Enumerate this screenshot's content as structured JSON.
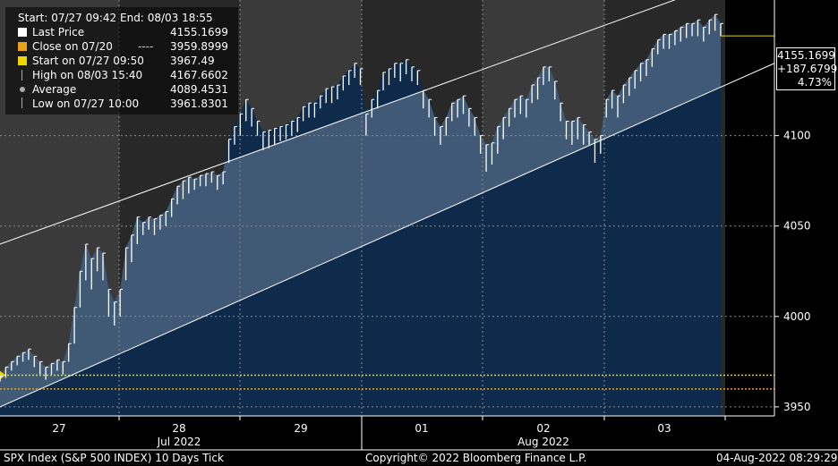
{
  "legend": {
    "header_start_label": "Start:",
    "header_start": "07/27 09:42",
    "header_end_label": "End:",
    "header_end": "08/03 18:55",
    "rows": [
      {
        "label": "Last Price",
        "value": "4155.1699",
        "color": "#ffffff",
        "marker": "square"
      },
      {
        "label": "Close on 07/20",
        "value": "3959.8999",
        "color": "#e8a21a",
        "marker": "square",
        "dash": "----"
      },
      {
        "label": "Start on 07/27 09:50",
        "value": "3967.49",
        "color": "#ecd800",
        "marker": "square"
      },
      {
        "label": "High on 08/03 15:40",
        "value": "4167.6602",
        "color": "#aaaaaa",
        "marker": "high"
      },
      {
        "label": "Average",
        "value": "4089.4531",
        "color": "#aaaaaa",
        "marker": "dot"
      },
      {
        "label": "Low on 07/27 10:00",
        "value": "3961.8301",
        "color": "#aaaaaa",
        "marker": "low"
      }
    ]
  },
  "price_box": {
    "price": "4155.1699",
    "change": "+187.6799",
    "pct": "4.73%"
  },
  "footer": {
    "left": "SPX Index (S&P 500 INDEX) 10 Days  Tick",
    "center": "Copyright© 2022 Bloomberg Finance L.P.",
    "right": "04-Aug-2022 08:29:29"
  },
  "chart_data": {
    "type": "line",
    "title": "SPX Index (S&P 500 INDEX) 10 Days  Tick",
    "xlabel": "",
    "ylabel": "",
    "ylim": [
      3945,
      4175
    ],
    "y_ticks": [
      3950,
      4000,
      4050,
      4100
    ],
    "x_day_labels": [
      "27",
      "28",
      "29",
      "01",
      "02",
      "03"
    ],
    "x_month_labels": [
      "Jul 2022",
      "Aug 2022"
    ],
    "grid": true,
    "reference_lines": [
      {
        "name": "Start on 07/27 09:50",
        "value": 3967.49,
        "color": "#ecd800"
      },
      {
        "name": "Close on 07/20",
        "value": 3959.8999,
        "color": "#e8a21a"
      }
    ],
    "channel": {
      "upper_start": 4040,
      "upper_end": 4195,
      "lower_start": 3950,
      "lower_end": 4140
    },
    "series": [
      {
        "name": "Last Price",
        "values": [
          [
            3964,
            3967
          ],
          [
            3966,
            3972
          ],
          [
            3970,
            3975
          ],
          [
            3973,
            3978
          ],
          [
            3975,
            3980
          ],
          [
            3976,
            3982
          ],
          [
            3972,
            3978
          ],
          [
            3968,
            3975
          ],
          [
            3965,
            3972
          ],
          [
            3968,
            3974
          ],
          [
            3970,
            3976
          ],
          [
            3968,
            3975
          ],
          [
            3975,
            3985
          ],
          [
            3985,
            4005
          ],
          [
            4005,
            4025
          ],
          [
            4020,
            4040
          ],
          [
            4015,
            4032
          ],
          [
            4025,
            4038
          ],
          [
            4020,
            4035
          ],
          [
            4000,
            4015
          ],
          [
            3995,
            4008
          ],
          [
            4000,
            4015
          ],
          [
            4020,
            4038
          ],
          [
            4030,
            4045
          ],
          [
            4040,
            4055
          ],
          [
            4045,
            4052
          ],
          [
            4048,
            4055
          ],
          [
            4045,
            4054
          ],
          [
            4048,
            4056
          ],
          [
            4050,
            4058
          ],
          [
            4055,
            4065
          ],
          [
            4062,
            4072
          ],
          [
            4065,
            4075
          ],
          [
            4068,
            4077
          ],
          [
            4070,
            4076
          ],
          [
            4072,
            4078
          ],
          [
            4072,
            4079
          ],
          [
            4074,
            4080
          ],
          [
            4070,
            4078
          ],
          [
            4073,
            4080
          ],
          [
            4085,
            4098
          ],
          [
            4095,
            4105
          ],
          [
            4100,
            4112
          ],
          [
            4108,
            4120
          ],
          [
            4105,
            4115
          ],
          [
            4100,
            4108
          ],
          [
            4092,
            4102
          ],
          [
            4093,
            4103
          ],
          [
            4095,
            4104
          ],
          [
            4097,
            4105
          ],
          [
            4098,
            4106
          ],
          [
            4100,
            4108
          ],
          [
            4102,
            4110
          ],
          [
            4108,
            4116
          ],
          [
            4110,
            4118
          ],
          [
            4110,
            4118
          ],
          [
            4115,
            4122
          ],
          [
            4118,
            4126
          ],
          [
            4118,
            4127
          ],
          [
            4120,
            4128
          ],
          [
            4125,
            4133
          ],
          [
            4128,
            4136
          ],
          [
            4132,
            4140
          ],
          [
            4128,
            4137
          ],
          [
            4100,
            4112
          ],
          [
            4110,
            4120
          ],
          [
            4115,
            4125
          ],
          [
            4125,
            4135
          ],
          [
            4128,
            4137
          ],
          [
            4132,
            4140
          ],
          [
            4130,
            4140
          ],
          [
            4134,
            4142
          ],
          [
            4130,
            4138
          ],
          [
            4128,
            4136
          ],
          [
            4115,
            4125
          ],
          [
            4110,
            4120
          ],
          [
            4100,
            4110
          ],
          [
            4095,
            4105
          ],
          [
            4100,
            4110
          ],
          [
            4108,
            4118
          ],
          [
            4110,
            4120
          ],
          [
            4112,
            4122
          ],
          [
            4105,
            4115
          ],
          [
            4100,
            4110
          ],
          [
            4090,
            4100
          ],
          [
            4080,
            4095
          ],
          [
            4084,
            4096
          ],
          [
            4090,
            4105
          ],
          [
            4098,
            4110
          ],
          [
            4105,
            4115
          ],
          [
            4110,
            4120
          ],
          [
            4112,
            4122
          ],
          [
            4110,
            4120
          ],
          [
            4118,
            4128
          ],
          [
            4120,
            4132
          ],
          [
            4128,
            4138
          ],
          [
            4130,
            4138
          ],
          [
            4120,
            4130
          ],
          [
            4108,
            4118
          ],
          [
            4098,
            4108
          ],
          [
            4095,
            4108
          ],
          [
            4098,
            4110
          ],
          [
            4095,
            4106
          ],
          [
            4095,
            4102
          ],
          [
            4085,
            4098
          ],
          [
            4090,
            4100
          ],
          [
            4110,
            4120
          ],
          [
            4115,
            4125
          ],
          [
            4110,
            4122
          ],
          [
            4118,
            4128
          ],
          [
            4122,
            4132
          ],
          [
            4126,
            4136
          ],
          [
            4130,
            4140
          ],
          [
            4133,
            4142
          ],
          [
            4138,
            4148
          ],
          [
            4145,
            4153
          ],
          [
            4148,
            4156
          ],
          [
            4148,
            4156
          ],
          [
            4150,
            4158
          ],
          [
            4152,
            4160
          ],
          [
            4154,
            4162
          ],
          [
            4155,
            4162
          ],
          [
            4155,
            4164
          ],
          [
            4152,
            4160
          ],
          [
            4156,
            4164
          ],
          [
            4158,
            4167
          ],
          [
            4155,
            4162
          ]
        ]
      }
    ]
  }
}
